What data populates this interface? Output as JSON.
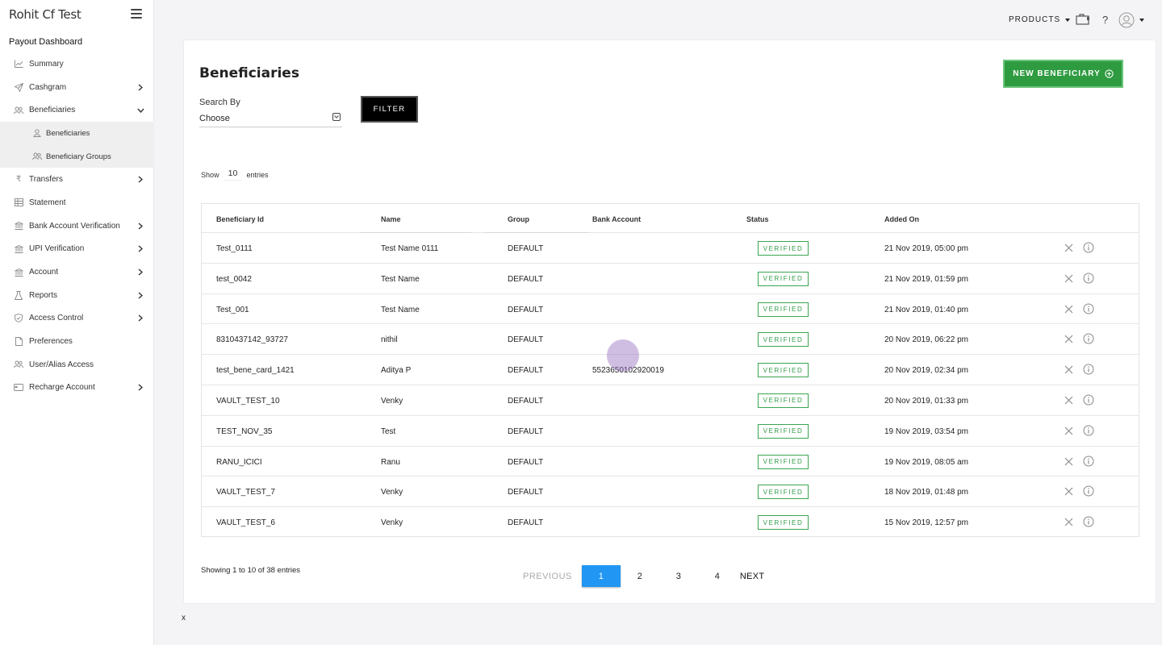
{
  "sidebar": {
    "brand": "Rohit Cf Test",
    "section_title": "Payout Dashboard",
    "items": [
      {
        "label": "Summary",
        "icon": "chart-line-icon",
        "chevron": false
      },
      {
        "label": "Cashgram",
        "icon": "paper-plane-icon",
        "chevron": true
      },
      {
        "label": "Beneficiaries",
        "icon": "users-icon",
        "chevron": true,
        "expanded": true
      },
      {
        "label": "Transfers",
        "icon": "rupee-icon",
        "chevron": true
      },
      {
        "label": "Statement",
        "icon": "table-icon",
        "chevron": false
      },
      {
        "label": "Bank Account Verification",
        "icon": "bank-icon",
        "chevron": true
      },
      {
        "label": "UPI Verification",
        "icon": "bank-icon",
        "chevron": true
      },
      {
        "label": "Account",
        "icon": "bank-icon",
        "chevron": true
      },
      {
        "label": "Reports",
        "icon": "flask-icon",
        "chevron": true
      },
      {
        "label": "Access Control",
        "icon": "shield-icon",
        "chevron": true
      },
      {
        "label": "Preferences",
        "icon": "file-icon",
        "chevron": false
      },
      {
        "label": "User/Alias Access",
        "icon": "users-icon",
        "chevron": false
      },
      {
        "label": "Recharge Account",
        "icon": "card-icon",
        "chevron": true
      }
    ],
    "sub_items": [
      {
        "label": "Beneficiaries",
        "icon": "user-icon"
      },
      {
        "label": "Beneficiary Groups",
        "icon": "users-icon"
      }
    ]
  },
  "topbar": {
    "products_label": "PRODUCTS",
    "help_label": "?"
  },
  "main": {
    "title": "Beneficiaries",
    "new_button_label": "NEW BENEFICIARY",
    "search_label": "Search By",
    "search_value": "Choose",
    "filter_label": "FILTER",
    "show_prefix": "Show",
    "show_value": "10",
    "show_suffix": "entries",
    "columns": [
      "Beneficiary Id",
      "Name",
      "Group",
      "Bank Account",
      "Status",
      "Added On"
    ],
    "rows": [
      {
        "id": "Test_0111",
        "name": "Test Name 0111",
        "group": "DEFAULT",
        "bank": "",
        "status": "VERIFIED",
        "added": "21 Nov 2019, 05:00 pm"
      },
      {
        "id": "test_0042",
        "name": "Test Name",
        "group": "DEFAULT",
        "bank": "",
        "status": "VERIFIED",
        "added": "21 Nov 2019, 01:59 pm"
      },
      {
        "id": "Test_001",
        "name": "Test Name",
        "group": "DEFAULT",
        "bank": "",
        "status": "VERIFIED",
        "added": "21 Nov 2019, 01:40 pm"
      },
      {
        "id": "8310437142_93727",
        "name": "nithil",
        "group": "DEFAULT",
        "bank": "",
        "status": "VERIFIED",
        "added": "20 Nov 2019, 06:22 pm"
      },
      {
        "id": "test_bene_card_1421",
        "name": "Aditya P",
        "group": "DEFAULT",
        "bank": "5523650102920019",
        "status": "VERIFIED",
        "added": "20 Nov 2019, 02:34 pm"
      },
      {
        "id": "VAULT_TEST_10",
        "name": "Venky",
        "group": "DEFAULT",
        "bank": "",
        "status": "VERIFIED",
        "added": "20 Nov 2019, 01:33 pm"
      },
      {
        "id": "TEST_NOV_35",
        "name": "Test",
        "group": "DEFAULT",
        "bank": "",
        "status": "VERIFIED",
        "added": "19 Nov 2019, 03:54 pm"
      },
      {
        "id": "RANU_ICICI",
        "name": "Ranu",
        "group": "DEFAULT",
        "bank": "",
        "status": "VERIFIED",
        "added": "19 Nov 2019, 08:05 am"
      },
      {
        "id": "VAULT_TEST_7",
        "name": "Venky",
        "group": "DEFAULT",
        "bank": "",
        "status": "VERIFIED",
        "added": "18 Nov 2019, 01:48 pm"
      },
      {
        "id": "VAULT_TEST_6",
        "name": "Venky",
        "group": "DEFAULT",
        "bank": "",
        "status": "VERIFIED",
        "added": "15 Nov 2019, 12:57 pm"
      }
    ],
    "showing_text": "Showing 1 to 10 of 38 entries",
    "pagination": {
      "previous": "PREVIOUS",
      "pages": [
        "1",
        "2",
        "3",
        "4"
      ],
      "active": "1",
      "next": "NEXT"
    }
  },
  "footer_text": "x",
  "colors": {
    "accent_green": "#2f9b41",
    "badge_green": "#2e9a45",
    "active_page_blue": "#2196f3"
  }
}
